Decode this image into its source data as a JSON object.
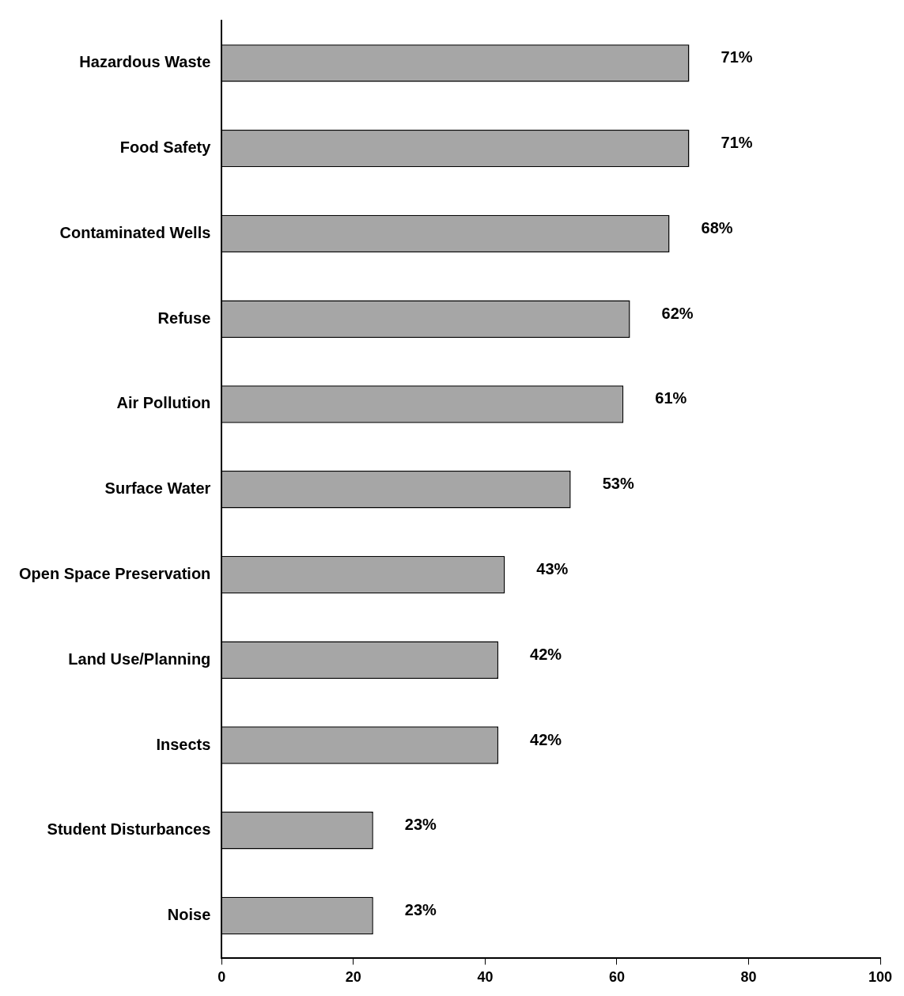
{
  "chart_data": {
    "type": "bar",
    "orientation": "horizontal",
    "categories": [
      "Hazardous Waste",
      "Food Safety",
      "Contaminated Wells",
      "Refuse",
      "Air Pollution",
      "Surface Water",
      "Open Space Preservation",
      "Land Use/Planning",
      "Insects",
      "Student Disturbances",
      "Noise"
    ],
    "values": [
      71,
      71,
      68,
      62,
      61,
      53,
      43,
      42,
      42,
      23,
      23
    ],
    "value_labels": [
      "71%",
      "71%",
      "68%",
      "62%",
      "61%",
      "53%",
      "43%",
      "42%",
      "42%",
      "23%",
      "23%"
    ],
    "color": "#a6a6a6",
    "xlim": [
      0,
      100
    ],
    "xticks": [
      0,
      20,
      40,
      60,
      80,
      100
    ],
    "grid": false,
    "legend": false
  }
}
